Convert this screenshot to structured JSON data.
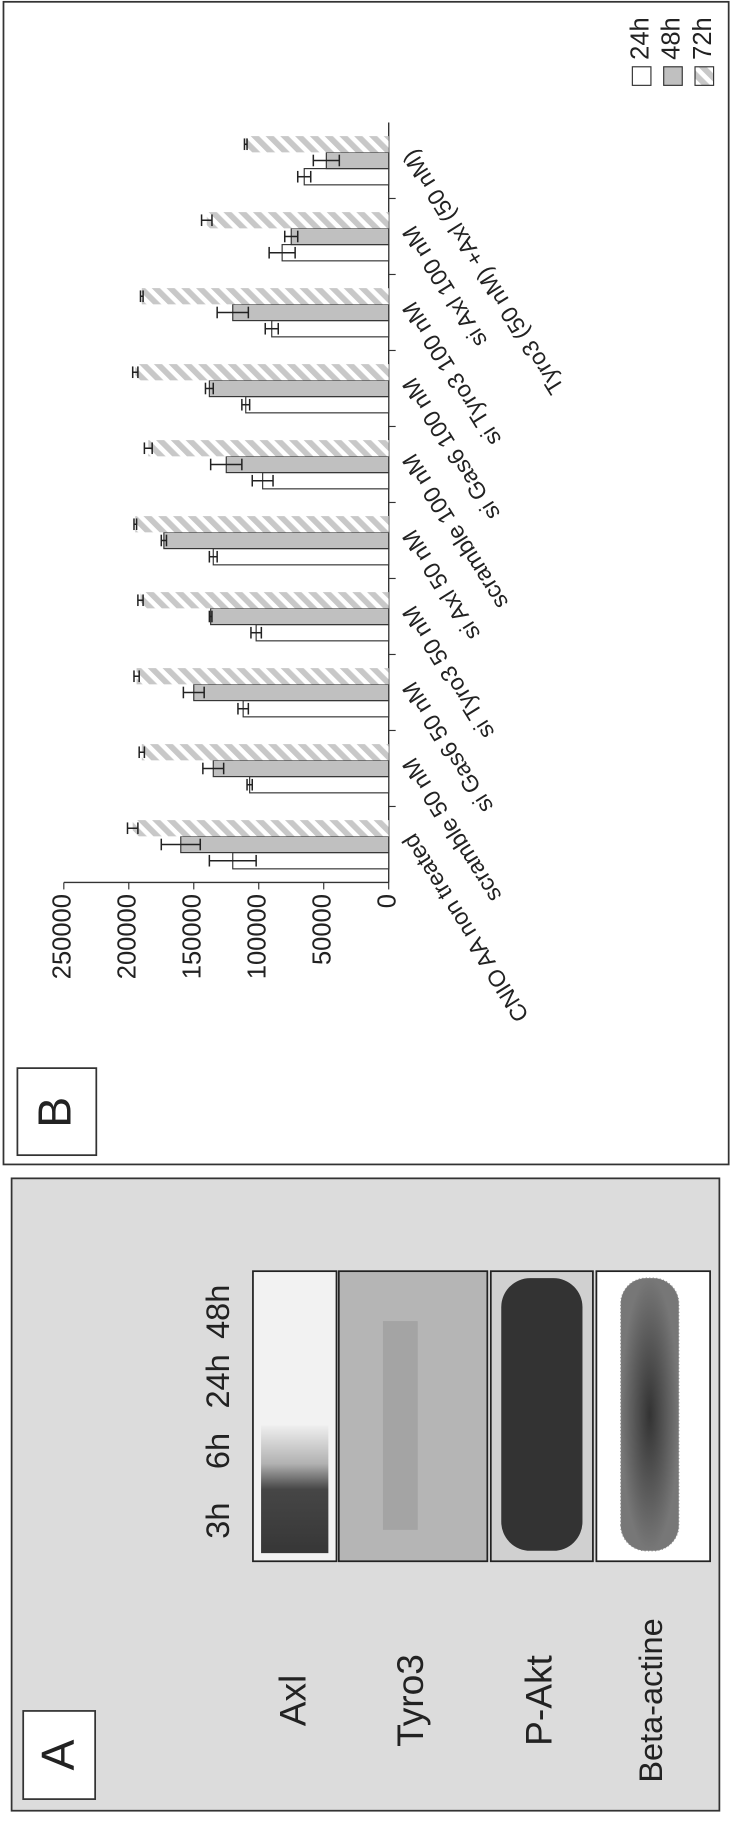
{
  "panel_a": {
    "label": "A",
    "time_points": [
      "3h",
      "6h",
      "24h",
      "48h"
    ],
    "rows": [
      "Axl",
      "Tyro3",
      "P-Akt",
      "Beta-actine"
    ]
  },
  "chart_data": {
    "type": "bar",
    "panel_label": "B",
    "categories": [
      "CNIO AA non treated",
      "scramble 50 nM",
      "si Gas6 50 nM",
      "si Tyro3 50 nM",
      "si Axl 50 nM",
      "scramble 100 nM",
      "si Gas6 100 nM",
      "si Tyro3 100 nM",
      "si Axl 100 nM",
      "Tyro3 (50 nM) +Axl (50 nM)"
    ],
    "series": [
      {
        "name": "24h",
        "color": "#ffffff",
        "values": [
          120000,
          107000,
          112000,
          102000,
          135000,
          97000,
          110000,
          90000,
          82000,
          65000
        ],
        "errors": [
          18000,
          2000,
          4000,
          4000,
          3000,
          8000,
          3000,
          5000,
          10000,
          5000
        ]
      },
      {
        "name": "48h",
        "color": "#c0c0c0",
        "values": [
          160000,
          135000,
          150000,
          137000,
          173000,
          125000,
          138000,
          120000,
          75000,
          48000
        ],
        "errors": [
          15000,
          8000,
          8000,
          1000,
          2000,
          12000,
          3000,
          12000,
          5000,
          10000
        ]
      },
      {
        "name": "72h",
        "color": "#c8c8c8",
        "hatch": true,
        "values": [
          197000,
          190000,
          194000,
          191000,
          195000,
          185000,
          195000,
          190000,
          140000,
          110000
        ],
        "errors": [
          4000,
          2000,
          2000,
          2000,
          1000,
          3000,
          2000,
          1000,
          4000,
          1000
        ]
      }
    ],
    "ylim": [
      0,
      250000
    ],
    "yticks": [
      0,
      50000,
      100000,
      150000,
      200000,
      250000
    ],
    "grid": false,
    "legend": "right"
  }
}
